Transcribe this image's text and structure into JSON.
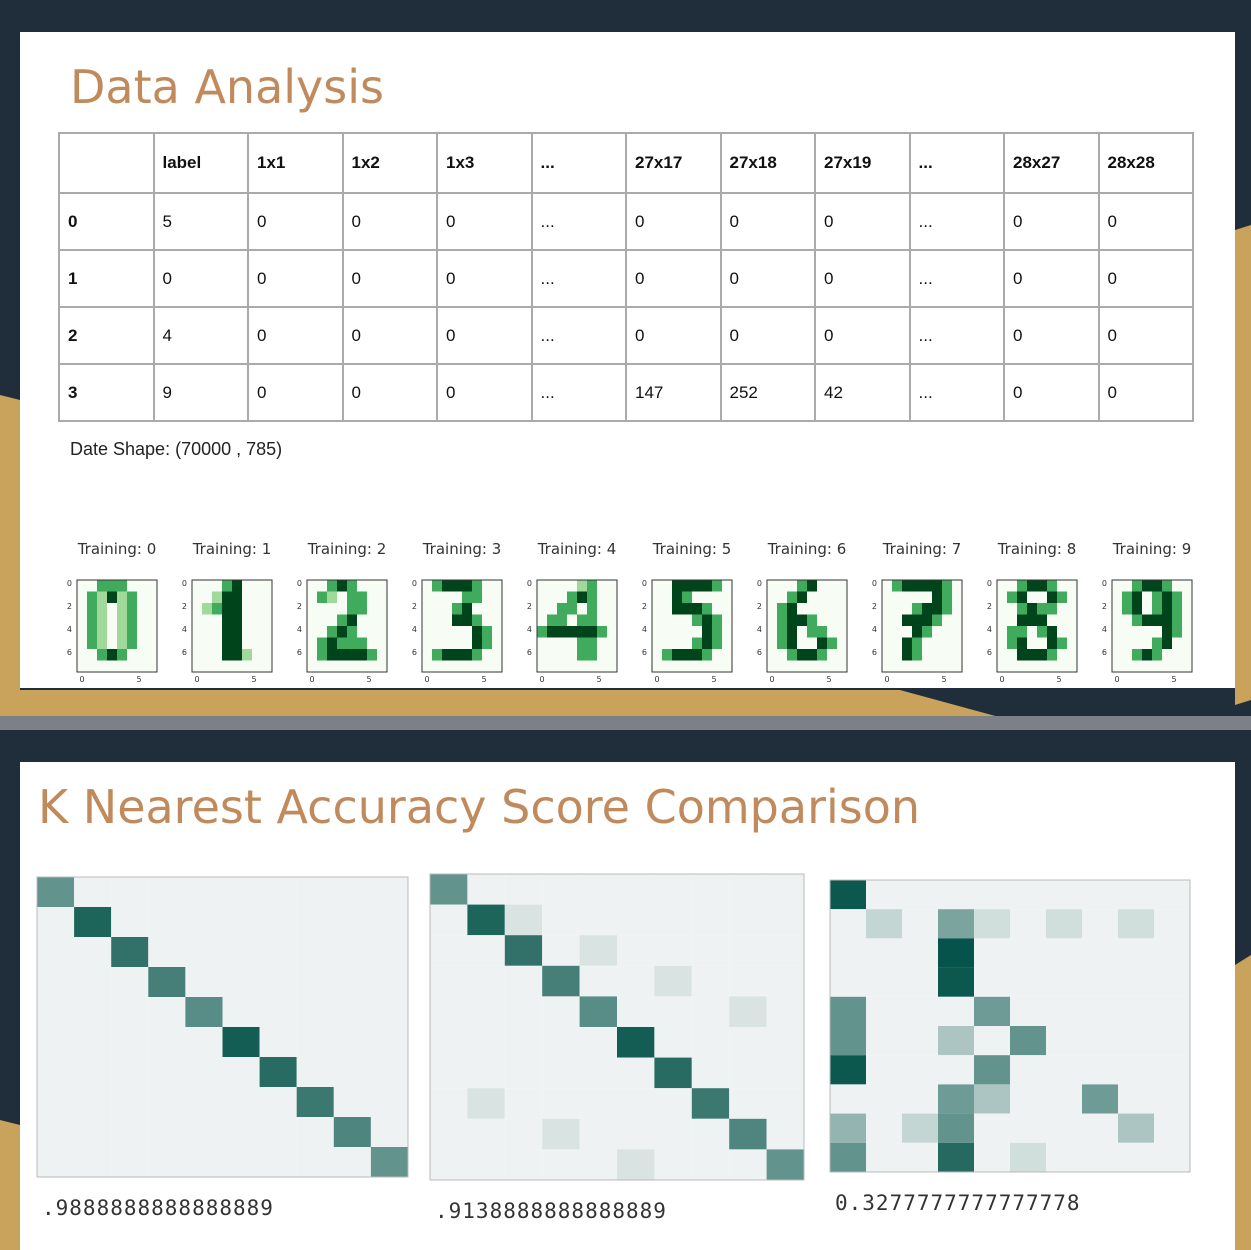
{
  "slides": [
    {
      "title": "Data Analysis",
      "table": {
        "header": [
          "",
          "label",
          "1x1",
          "1x2",
          "1x3",
          "...",
          "27x17",
          "27x18",
          "27x19",
          "...",
          "28x27",
          "28x28"
        ],
        "rows": [
          [
            "0",
            "5",
            "0",
            "0",
            "0",
            "...",
            "0",
            "0",
            "0",
            "...",
            "0",
            "0"
          ],
          [
            "1",
            "0",
            "0",
            "0",
            "0",
            "...",
            "0",
            "0",
            "0",
            "...",
            "0",
            "0"
          ],
          [
            "2",
            "4",
            "0",
            "0",
            "0",
            "...",
            "0",
            "0",
            "0",
            "...",
            "0",
            "0"
          ],
          [
            "3",
            "9",
            "0",
            "0",
            "0",
            "...",
            "147",
            "252",
            "42",
            "...",
            "0",
            "0"
          ]
        ]
      },
      "shape_text": "Date Shape: (70000 , 785)",
      "digit_titles": [
        "Training: 0",
        "Training: 1",
        "Training: 2",
        "Training: 3",
        "Training: 4",
        "Training: 5",
        "Training: 6",
        "Training: 7",
        "Training: 8",
        "Training: 9"
      ],
      "digit_axis": {
        "yticks": [
          "0",
          "2",
          "4",
          "6"
        ],
        "xticks": [
          "0",
          "5"
        ]
      }
    },
    {
      "title": "K Nearest Accuracy Score Comparison",
      "scores": [
        ".9888888888888889",
        ".9138888888888889",
        "0.3277777777777778"
      ]
    }
  ]
}
